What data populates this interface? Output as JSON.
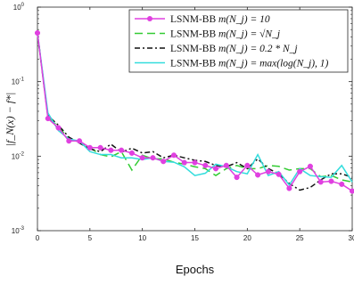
{
  "chart_data": {
    "type": "line",
    "xlabel": "Epochs",
    "ylabel": "|f_N(x) − f*|",
    "xlim": [
      0,
      30
    ],
    "ylim": [
      0.001,
      1
    ],
    "yscale": "log",
    "grid": false,
    "legend_position": "top-right",
    "x_ticks": [
      0,
      5,
      10,
      15,
      20,
      25,
      30
    ],
    "x_tick_labels": [
      "0",
      "5",
      "10",
      "15",
      "20",
      "25",
      "30"
    ],
    "y_ticks": [
      0.001,
      0.01,
      0.1,
      1
    ],
    "y_tick_labels": [
      [
        "10",
        "-3"
      ],
      [
        "10",
        "-2"
      ],
      [
        "10",
        "-1"
      ],
      [
        "10",
        "0"
      ]
    ],
    "series": [
      {
        "name": "LSNM-BB m(N_j) = 10",
        "legend_prefix": "LSNM-BB ",
        "legend_math": "m(N_j) = 10",
        "color": "#e040e0",
        "dash": "",
        "marker": "circle",
        "x": [
          0,
          1,
          2,
          3,
          4,
          5,
          6,
          7,
          8,
          9,
          10,
          11,
          12,
          13,
          14,
          15,
          16,
          17,
          18,
          19,
          20,
          21,
          22,
          23,
          24,
          25,
          26,
          27,
          28,
          29,
          30
        ],
        "y": [
          0.45,
          0.032,
          0.024,
          0.016,
          0.016,
          0.013,
          0.013,
          0.012,
          0.012,
          0.011,
          0.0095,
          0.0095,
          0.0085,
          0.0103,
          0.0082,
          0.0082,
          0.0075,
          0.0068,
          0.0075,
          0.0052,
          0.0075,
          0.0056,
          0.0062,
          0.0057,
          0.0037,
          0.0062,
          0.0073,
          0.0045,
          0.0046,
          0.0042,
          0.0034
        ]
      },
      {
        "name": "LSNM-BB m(N_j) = √N_j",
        "legend_prefix": "LSNM-BB ",
        "legend_math": "m(N_j) = √N_j",
        "color": "#33cc33",
        "dash": "9,5",
        "marker": "",
        "x": [
          0,
          1,
          2,
          3,
          4,
          5,
          6,
          7,
          8,
          9,
          10,
          11,
          12,
          13,
          14,
          15,
          16,
          17,
          18,
          19,
          20,
          21,
          22,
          23,
          24,
          25,
          26,
          27,
          28,
          29,
          30
        ],
        "y": [
          0.45,
          0.033,
          0.025,
          0.017,
          0.015,
          0.013,
          0.0105,
          0.0098,
          0.0115,
          0.0065,
          0.0103,
          0.0092,
          0.0092,
          0.0083,
          0.0078,
          0.0072,
          0.0068,
          0.0055,
          0.0068,
          0.0075,
          0.0068,
          0.0068,
          0.0075,
          0.0073,
          0.0065,
          0.0068,
          0.0068,
          0.0053,
          0.0055,
          0.0048,
          0.0045
        ]
      },
      {
        "name": "LSNM-BB m(N_j) = 0.2*N_j",
        "legend_prefix": "LSNM-BB ",
        "legend_math": "m(N_j) = 0.2 * N_j",
        "color": "#111111",
        "dash": "6,3,2,3",
        "marker": "",
        "x": [
          0,
          1,
          2,
          3,
          4,
          5,
          6,
          7,
          8,
          9,
          10,
          11,
          12,
          13,
          14,
          15,
          16,
          17,
          18,
          19,
          20,
          21,
          22,
          23,
          24,
          25,
          26,
          27,
          28,
          29,
          30
        ],
        "y": [
          0.45,
          0.035,
          0.026,
          0.018,
          0.015,
          0.0125,
          0.0115,
          0.0145,
          0.0113,
          0.0128,
          0.011,
          0.0115,
          0.0095,
          0.0103,
          0.0095,
          0.0088,
          0.0085,
          0.0075,
          0.0072,
          0.0082,
          0.0068,
          0.0092,
          0.0068,
          0.0058,
          0.0043,
          0.0035,
          0.0038,
          0.0048,
          0.0058,
          0.0058,
          0.0052
        ]
      },
      {
        "name": "LSNM-BB m(N_j) = max(log(N_j), 1)",
        "legend_prefix": "LSNM-BB ",
        "legend_math": "m(N_j) = max(log(N_j), 1)",
        "color": "#33dddd",
        "dash": "",
        "marker": "",
        "x": [
          0,
          1,
          2,
          3,
          4,
          5,
          6,
          7,
          8,
          9,
          10,
          11,
          12,
          13,
          14,
          15,
          16,
          17,
          18,
          19,
          20,
          21,
          22,
          23,
          24,
          25,
          26,
          27,
          28,
          29,
          30
        ],
        "y": [
          0.45,
          0.038,
          0.022,
          0.017,
          0.016,
          0.0115,
          0.0105,
          0.0105,
          0.0095,
          0.0095,
          0.009,
          0.0095,
          0.0085,
          0.0083,
          0.0072,
          0.0055,
          0.0059,
          0.0078,
          0.0072,
          0.0062,
          0.0058,
          0.0105,
          0.0055,
          0.0062,
          0.0041,
          0.0068,
          0.0055,
          0.0053,
          0.0052,
          0.0075,
          0.0045
        ]
      }
    ]
  }
}
